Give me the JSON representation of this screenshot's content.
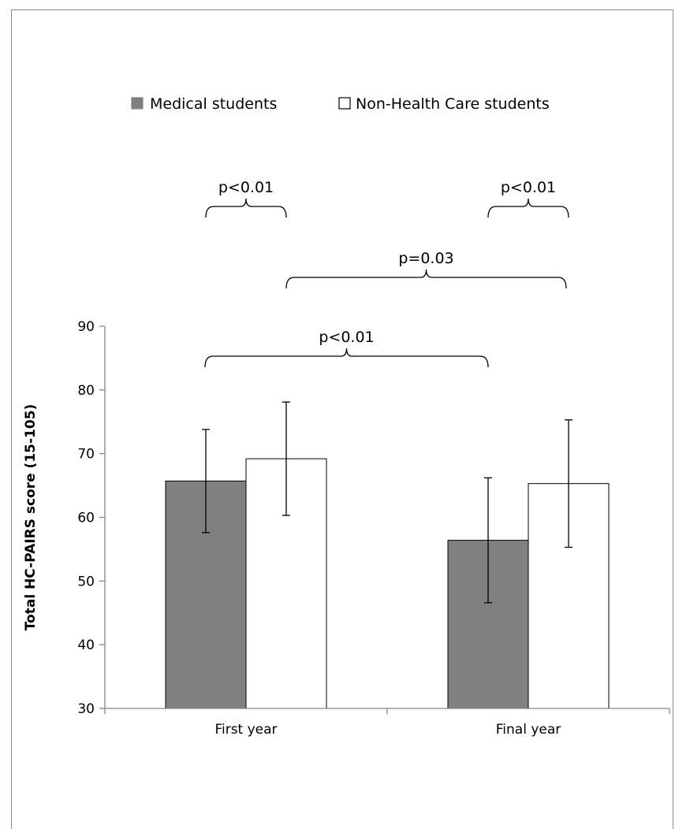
{
  "chart_data": {
    "type": "bar",
    "title": "",
    "xlabel": "",
    "ylabel": "Total HC-PAIRS score (15-105)",
    "ylim": [
      30,
      90
    ],
    "yticks": [
      30,
      40,
      50,
      60,
      70,
      80,
      90
    ],
    "categories": [
      "First year",
      "Final year"
    ],
    "grid": false,
    "legend_position": "top",
    "series": [
      {
        "name": "Medical students",
        "color": "#808080",
        "values": [
          65.7,
          56.4
        ],
        "error": [
          8.1,
          9.8
        ]
      },
      {
        "name": "Non-Health Care students",
        "color": "#ffffff",
        "values": [
          69.2,
          65.3
        ],
        "error": [
          8.9,
          10.0
        ]
      }
    ],
    "annotations": [
      {
        "label": "p<0.01",
        "from": {
          "category": "First year",
          "series": "Medical students"
        },
        "to": {
          "category": "First year",
          "series": "Non-Health Care students"
        }
      },
      {
        "label": "p<0.01",
        "from": {
          "category": "Final year",
          "series": "Medical students"
        },
        "to": {
          "category": "Final year",
          "series": "Non-Health Care students"
        }
      },
      {
        "label": "p=0.03",
        "from": {
          "category": "First year",
          "series": "Non-Health Care students"
        },
        "to": {
          "category": "Final year",
          "series": "Non-Health Care students"
        }
      },
      {
        "label": "p<0.01",
        "from": {
          "category": "First year",
          "series": "Medical students"
        },
        "to": {
          "category": "Final year",
          "series": "Medical students"
        }
      }
    ]
  }
}
